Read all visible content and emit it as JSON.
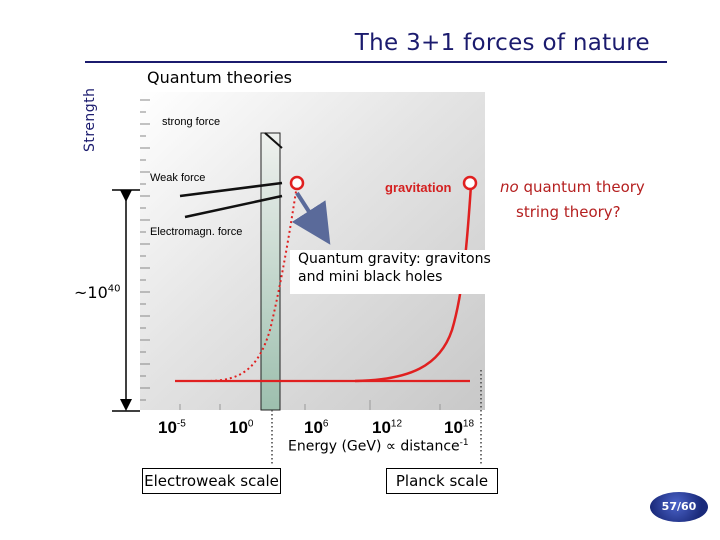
{
  "slide": {
    "title": "The 3+1 forces of nature",
    "y_axis_label": "Strength",
    "subtitle": "Quantum theories",
    "page_number": "57/60"
  },
  "labels": {
    "strong": "strong force",
    "weak": "Weak force",
    "em": "Electromagn. force",
    "gravitation": "gravitation",
    "no_quantum_prefix": "no",
    "no_quantum_rest": " quantum theory",
    "string_theory": "string theory?",
    "quantum_gravity_line1": "Quantum gravity: gravitons",
    "quantum_gravity_line2": " and mini black holes",
    "ratio_base": "~10",
    "ratio_exp": "40"
  },
  "x_axis": {
    "ticks": [
      {
        "base": "10",
        "exp": "-5"
      },
      {
        "base": "10",
        "exp": "0"
      },
      {
        "base": "10",
        "exp": "6"
      },
      {
        "base": "10",
        "exp": "12"
      },
      {
        "base": "10",
        "exp": "18"
      }
    ],
    "label_main": "Energy (GeV) ∝ distance",
    "label_exp": "-1"
  },
  "buttons": {
    "electroweak": "Electroweak scale",
    "planck": "Planck scale"
  },
  "colors": {
    "title": "#1b1b6e",
    "plot_bg": "#d2d2d2",
    "band": "#a9c7b4",
    "gravity": "#e02020",
    "arrow": "#5a6a9a"
  }
}
